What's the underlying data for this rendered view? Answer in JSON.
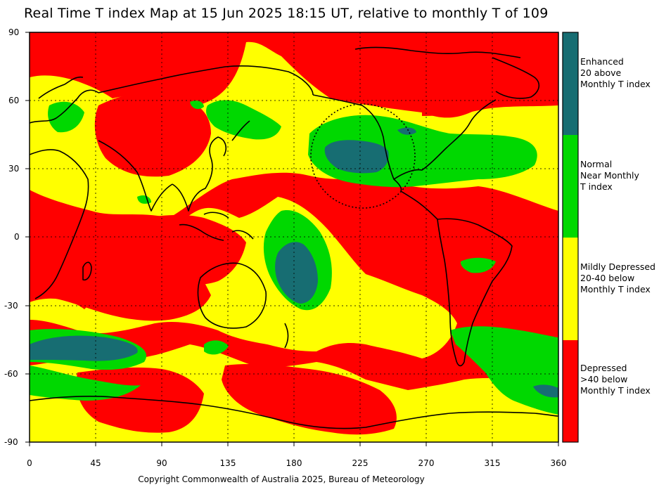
{
  "title": "Real Time T index Map at 15 Jun 2025 18:15 UT, relative to monthly T of 109",
  "copyright": "Copyright Commonwealth of Australia 2025, Bureau of Meteorology",
  "axes": {
    "x_ticks": [
      "0",
      "45",
      "90",
      "135",
      "180",
      "225",
      "270",
      "315",
      "360"
    ],
    "y_ticks": [
      "90",
      "60",
      "30",
      "0",
      "-30",
      "-60",
      "-90"
    ]
  },
  "legend": [
    {
      "color": "#176d72",
      "lines": [
        "Enhanced",
        "20 above",
        "Monthly T index"
      ]
    },
    {
      "color": "#00d800",
      "lines": [
        "Normal",
        "Near Monthly",
        "T index"
      ]
    },
    {
      "color": "#ffff00",
      "lines": [
        "Mildly Depressed",
        "20-40 below",
        "Monthly T index"
      ]
    },
    {
      "color": "#ff0000",
      "lines": [
        "Depressed",
        ">40 below",
        "Monthly T index"
      ]
    }
  ],
  "colors": {
    "depressed": "#ff0000",
    "mild": "#ffff00",
    "normal": "#00d800",
    "enhanced": "#176d72",
    "coast": "#000000"
  }
}
